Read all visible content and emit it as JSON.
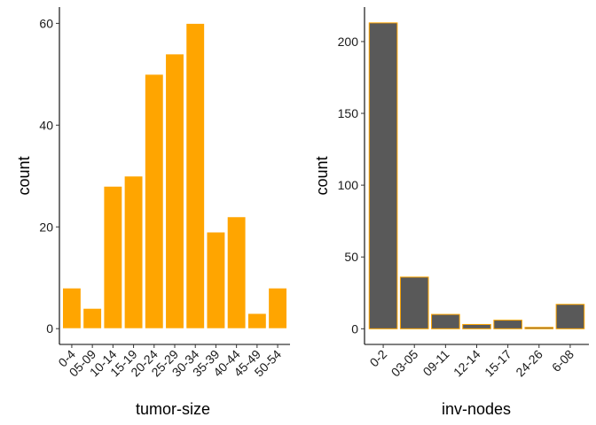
{
  "chart_data": [
    {
      "type": "bar",
      "categories": [
        "0-4",
        "05-09",
        "10-14",
        "15-19",
        "20-24",
        "25-29",
        "30-34",
        "35-39",
        "40-44",
        "45-49",
        "50-54"
      ],
      "values": [
        8,
        4,
        28,
        30,
        50,
        54,
        60,
        19,
        22,
        3,
        8
      ],
      "xlabel": "tumor-size",
      "ylabel": "count",
      "ylim": [
        -3.1,
        63.2
      ],
      "yticks": [
        0,
        20,
        40,
        60
      ],
      "fill": "#FFA500",
      "stroke": "#FFFFFF",
      "grid": false
    },
    {
      "type": "bar",
      "categories": [
        "0-2",
        "03-05",
        "09-11",
        "12-14",
        "15-17",
        "24-26",
        "6-08"
      ],
      "values": [
        213,
        36,
        10,
        3,
        6,
        1,
        17
      ],
      "xlabel": "inv-nodes",
      "ylabel": "count",
      "ylim": [
        -10.9,
        224
      ],
      "yticks": [
        0,
        50,
        100,
        150,
        200
      ],
      "fill": "#595959",
      "stroke": "#FFA500",
      "grid": false
    }
  ]
}
